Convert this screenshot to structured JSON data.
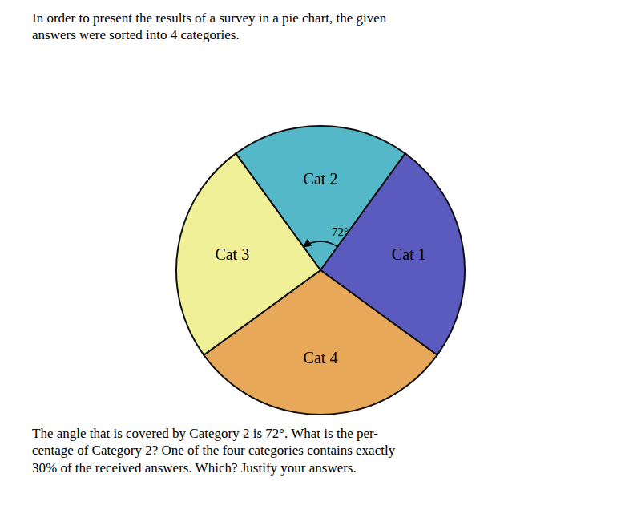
{
  "chart_data": {
    "type": "pie",
    "title": "In order to present the results of a survey in a pie chart, the given\nanswers were sorted into 4 categories.",
    "categories": [
      "Cat 2",
      "Cat 1",
      "Cat 4",
      "Cat 3"
    ],
    "values": [
      72,
      90,
      108,
      90
    ],
    "colors": [
      "#55b8c8",
      "#5b5bbf",
      "#e8a85a",
      "#f0f098"
    ],
    "annotations": [
      "72°",
      "The angle that is covered by Category 2 is 72°.  What is the per-\ncentage of Category 2?  One of the four categories contains exactly\n30% of the received answers.  Which?  Justify your answers."
    ]
  }
}
